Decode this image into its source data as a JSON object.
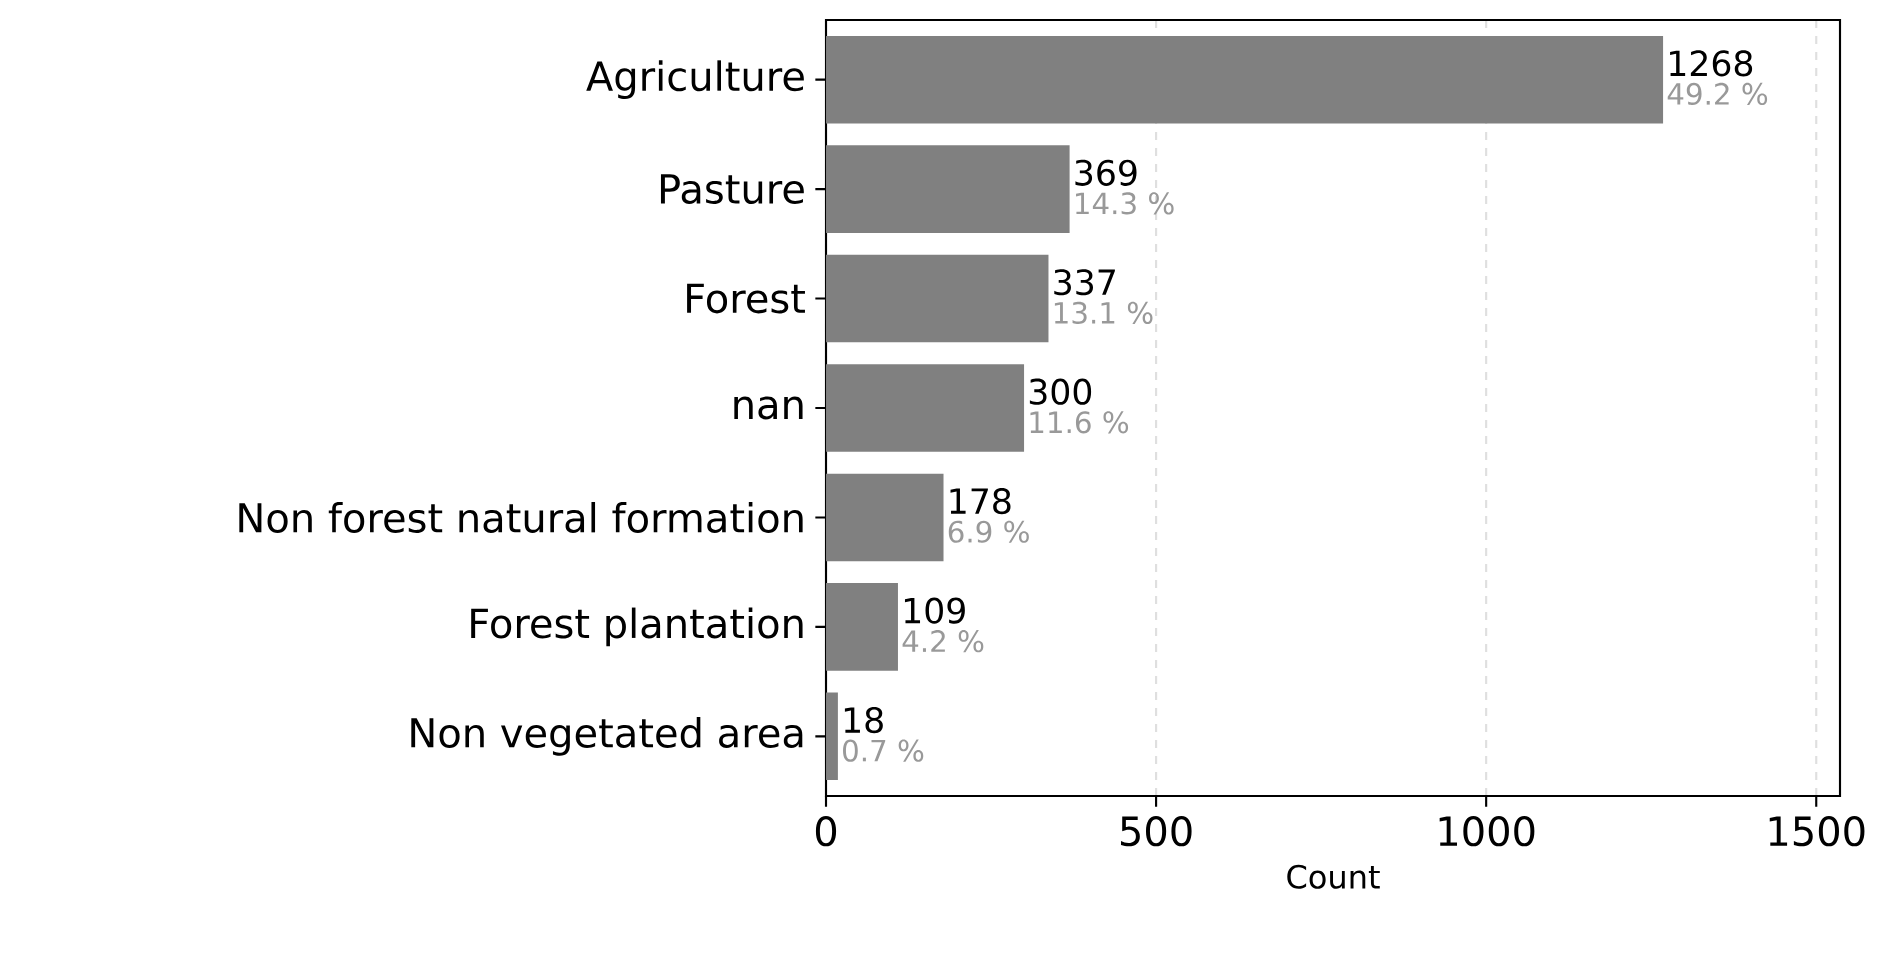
{
  "chart_data": {
    "type": "bar",
    "orientation": "horizontal",
    "xlabel": "Count",
    "categories": [
      "Agriculture",
      "Pasture",
      "Forest",
      "nan",
      "Non forest natural formation",
      "Forest plantation",
      "Non vegetated area"
    ],
    "values": [
      1268,
      369,
      337,
      300,
      178,
      109,
      18
    ],
    "value_labels": [
      "1268",
      "369",
      "337",
      "300",
      "178",
      "109",
      "18"
    ],
    "color": "#808080",
    "xlim": [
      0,
      1536
    ],
    "xticks": [
      0,
      500,
      1000,
      1500
    ],
    "grid": "x",
    "annotations": [
      {
        "text": "49.2 %",
        "x": 1268,
        "y": "Agriculture"
      },
      {
        "text": "14.3 %",
        "x": 369,
        "y": "Pasture"
      },
      {
        "text": "13.1 %",
        "x": 337,
        "y": "Forest"
      },
      {
        "text": "11.6 %",
        "x": 300,
        "y": "nan"
      },
      {
        "text": "6.9 %",
        "x": 178,
        "y": "Non forest natural formation"
      },
      {
        "text": "4.2 %",
        "x": 109,
        "y": "Forest plantation"
      },
      {
        "text": "0.7 %",
        "x": 18,
        "y": "Non vegetated area"
      }
    ]
  }
}
